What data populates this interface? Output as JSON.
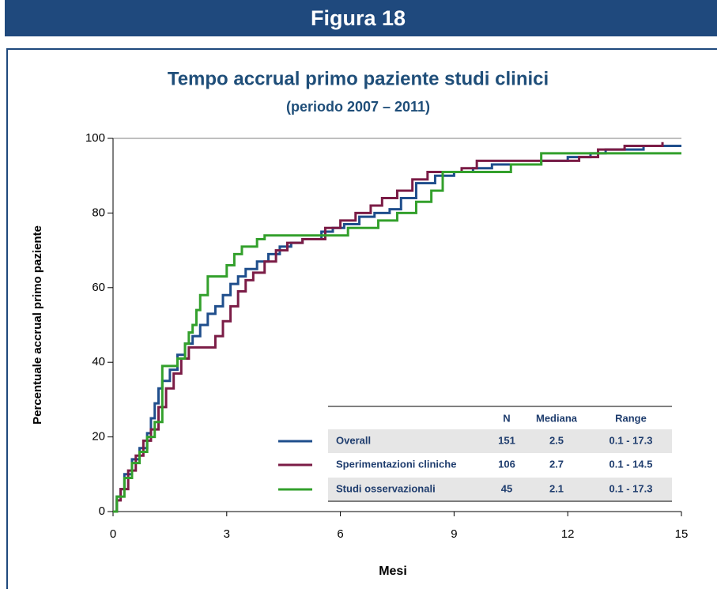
{
  "header": {
    "title": "Figura 18"
  },
  "chart_data": {
    "type": "line",
    "step": true,
    "title": "Tempo accrual primo paziente studi clinici",
    "subtitle": "(periodo 2007 – 2011)",
    "x_label": "Mesi",
    "y_label": "Percentuale accrual primo paziente",
    "xlim": [
      0,
      15
    ],
    "xticks": [
      0,
      3,
      6,
      9,
      12,
      15
    ],
    "ylim": [
      0,
      100
    ],
    "yticks": [
      0,
      20,
      40,
      60,
      80,
      100
    ],
    "grid": false,
    "legend_columns": [
      "N",
      "Mediana",
      "Range"
    ],
    "series": [
      {
        "name": "Overall",
        "color": "#1f4e8c",
        "n": 151,
        "median": 2.5,
        "range": "0.1 - 17.3",
        "x": [
          0,
          0.1,
          0.2,
          0.3,
          0.5,
          0.7,
          0.9,
          1.0,
          1.1,
          1.2,
          1.3,
          1.5,
          1.7,
          1.9,
          2.1,
          2.3,
          2.5,
          2.7,
          2.9,
          3.1,
          3.3,
          3.5,
          3.8,
          4.1,
          4.4,
          4.7,
          5.0,
          5.5,
          5.8,
          6.1,
          6.5,
          6.9,
          7.3,
          7.6,
          8.0,
          8.5,
          9.0,
          9.5,
          10.0,
          10.5,
          11.3,
          12.0,
          12.6,
          13.0,
          14.0,
          15
        ],
        "values": [
          0,
          4,
          6,
          10,
          14,
          17,
          21,
          25,
          29,
          33,
          35,
          38,
          42,
          45,
          47,
          50,
          53,
          55,
          58,
          61,
          63,
          65,
          67,
          69,
          71,
          72,
          73,
          75,
          76,
          77,
          79,
          80,
          81,
          84,
          88,
          90,
          91,
          92,
          93,
          93,
          94,
          95,
          96,
          97,
          98,
          98
        ]
      },
      {
        "name": "Sperimentazioni cliniche",
        "color": "#7b1c46",
        "n": 106,
        "median": 2.7,
        "range": "0.1 - 14.5",
        "x": [
          0,
          0.1,
          0.2,
          0.4,
          0.6,
          0.8,
          1.0,
          1.2,
          1.4,
          1.6,
          1.8,
          2.0,
          2.7,
          2.9,
          3.1,
          3.3,
          3.5,
          3.7,
          4.0,
          4.3,
          4.6,
          5.0,
          5.6,
          6.0,
          6.4,
          6.8,
          7.1,
          7.5,
          7.9,
          8.3,
          9.2,
          9.6,
          11.5,
          12.3,
          12.8,
          13.5,
          14.5
        ],
        "values": [
          0,
          3,
          6,
          11,
          15,
          19,
          22,
          28,
          33,
          37,
          41,
          44,
          47,
          51,
          55,
          59,
          62,
          64,
          67,
          70,
          72,
          73,
          76,
          78,
          80,
          82,
          84,
          86,
          89,
          91,
          92,
          94,
          94,
          95,
          97,
          98,
          99
        ]
      },
      {
        "name": "Studi osservazionali",
        "color": "#33a02c",
        "n": 45,
        "median": 2.1,
        "range": "0.1 - 17.3",
        "x": [
          0,
          0.1,
          0.3,
          0.5,
          0.7,
          0.9,
          1.1,
          1.3,
          1.7,
          1.9,
          2.0,
          2.1,
          2.2,
          2.3,
          2.5,
          3.0,
          3.2,
          3.4,
          3.8,
          4.0,
          6.2,
          7.0,
          7.5,
          8.0,
          8.4,
          8.7,
          10.5,
          11.3,
          15
        ],
        "values": [
          0,
          4,
          9,
          13,
          16,
          20,
          24,
          39,
          41,
          45,
          48,
          50,
          54,
          58,
          63,
          66,
          69,
          71,
          73,
          74,
          76,
          78,
          80,
          83,
          86,
          91,
          93,
          96,
          96
        ]
      }
    ]
  }
}
